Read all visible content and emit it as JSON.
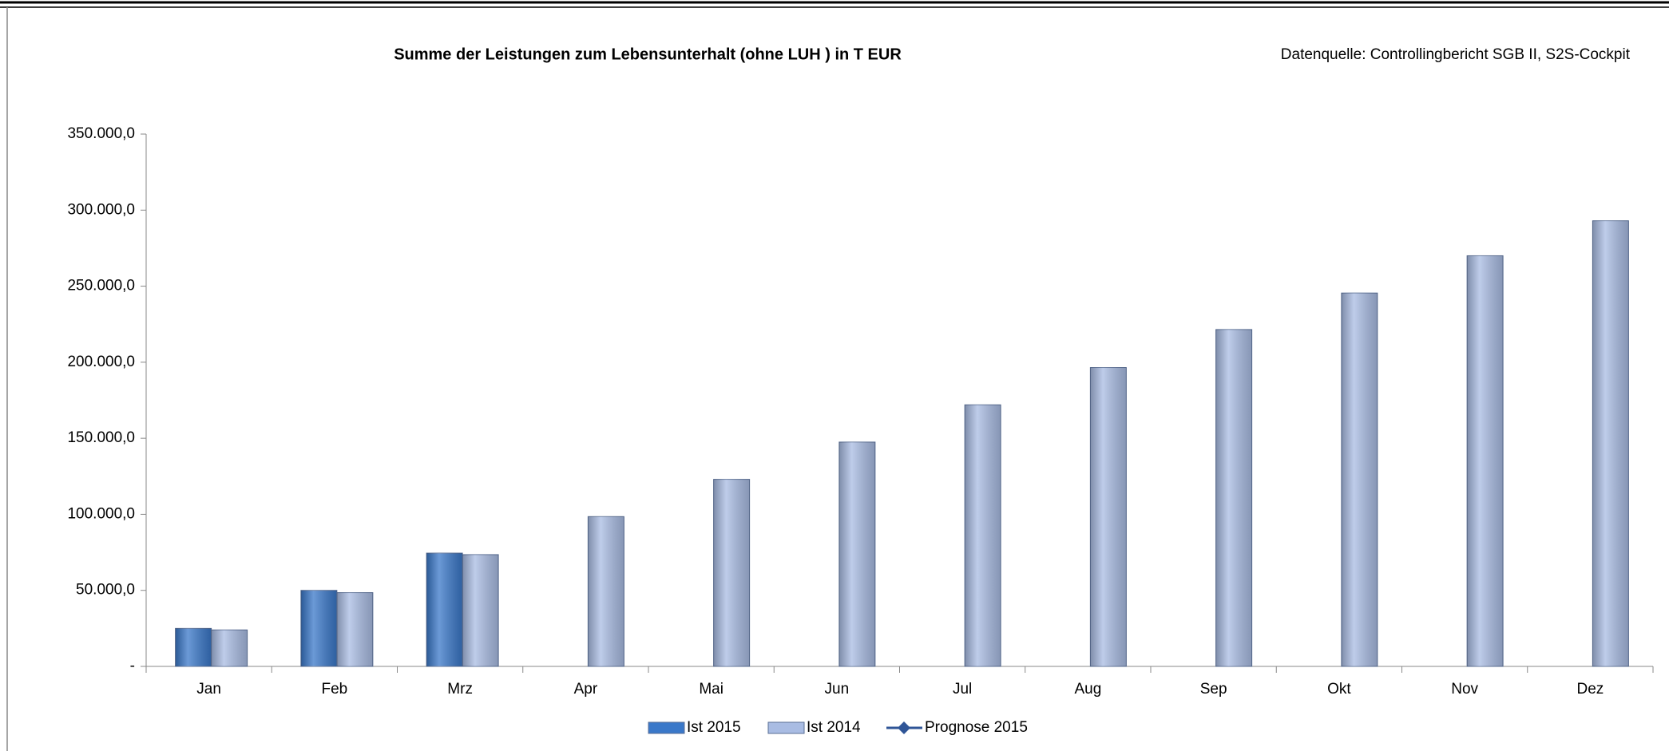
{
  "chart_data": {
    "type": "bar",
    "title": "Summe der Leistungen zum Lebensunterhalt (ohne LUH ) in T EUR",
    "source": "Datenquelle: Controllingbericht SGB II, S2S-Cockpit",
    "categories": [
      "Jan",
      "Feb",
      "Mrz",
      "Apr",
      "Mai",
      "Jun",
      "Jul",
      "Aug",
      "Sep",
      "Okt",
      "Nov",
      "Dez"
    ],
    "series": [
      {
        "name": "Ist 2015",
        "type": "bar",
        "color": "#3a78c9",
        "values": [
          25000,
          50000,
          74500,
          null,
          null,
          null,
          null,
          null,
          null,
          null,
          null,
          null
        ]
      },
      {
        "name": "Ist 2014",
        "type": "bar",
        "color": "#a9bce3",
        "values": [
          24000,
          48500,
          73500,
          98500,
          123000,
          147500,
          172000,
          196500,
          221500,
          245500,
          270000,
          293000
        ]
      },
      {
        "name": "Prognose 2015",
        "type": "line",
        "color": "#2f5597",
        "values": [
          null,
          null,
          null,
          null,
          null,
          null,
          null,
          null,
          null,
          null,
          null,
          null
        ]
      }
    ],
    "ylim": [
      0,
      350000
    ],
    "yticks": [
      {
        "value": 0,
        "label": "-"
      },
      {
        "value": 50000,
        "label": "50.000,0"
      },
      {
        "value": 100000,
        "label": "100.000,0"
      },
      {
        "value": 150000,
        "label": "150.000,0"
      },
      {
        "value": 200000,
        "label": "200.000,0"
      },
      {
        "value": 250000,
        "label": "250.000,0"
      },
      {
        "value": 300000,
        "label": "300.000,0"
      },
      {
        "value": 350000,
        "label": "350.000,0"
      }
    ],
    "grid": false,
    "legend": "bottom"
  }
}
